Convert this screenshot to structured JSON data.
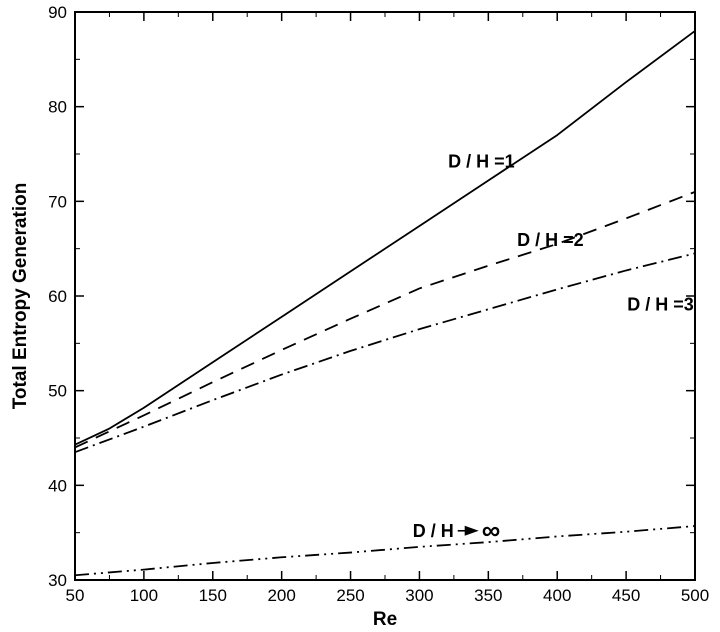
{
  "chart_data": {
    "type": "line",
    "title": "",
    "xlabel": "Re",
    "ylabel": "Total Entropy Generation",
    "xlim": [
      50,
      500
    ],
    "ylim": [
      30,
      90
    ],
    "xticks": [
      50,
      100,
      150,
      200,
      250,
      300,
      350,
      400,
      450,
      500
    ],
    "yticks": [
      30,
      40,
      50,
      60,
      70,
      80,
      90
    ],
    "grid": false,
    "legend": "none",
    "series": [
      {
        "name": "D / H =1",
        "style": "solid",
        "color": "#000000",
        "x": [
          50,
          75,
          100,
          150,
          200,
          250,
          300,
          350,
          400,
          450,
          500
        ],
        "y": [
          44.3,
          46.0,
          48.2,
          53.0,
          57.8,
          62.6,
          67.4,
          72.2,
          77.0,
          82.6,
          88.0
        ]
      },
      {
        "name": "D / H =2",
        "style": "dashed",
        "color": "#000000",
        "x": [
          50,
          100,
          150,
          200,
          250,
          300,
          350,
          400,
          450,
          500
        ],
        "y": [
          44.0,
          47.4,
          50.9,
          54.3,
          57.6,
          60.8,
          63.2,
          65.5,
          68.2,
          71.0
        ]
      },
      {
        "name": "D / H =3",
        "style": "dashdot",
        "color": "#000000",
        "x": [
          50,
          100,
          150,
          200,
          250,
          300,
          350,
          400,
          450,
          500
        ],
        "y": [
          43.5,
          46.2,
          49.0,
          51.7,
          54.2,
          56.5,
          58.6,
          60.7,
          62.7,
          64.5
        ]
      },
      {
        "name": "D / H",
        "style": "dashdotdot",
        "color": "#000000",
        "x": [
          50,
          100,
          150,
          200,
          250,
          300,
          350,
          400,
          450,
          500
        ],
        "y": [
          30.5,
          31.1,
          31.8,
          32.4,
          32.9,
          33.5,
          34.0,
          34.6,
          35.1,
          35.7
        ]
      }
    ],
    "annotations": [
      {
        "text": "D / H =1",
        "x": 345,
        "y": 74.2
      },
      {
        "text": "D / H =2",
        "x": 395,
        "y": 65.9
      },
      {
        "text": "D / H =3",
        "x": 475,
        "y": 59.1
      },
      {
        "text": "D / H",
        "x": 310,
        "y": 35.2,
        "arrow_to_x": 343,
        "symbol": "∞"
      }
    ]
  }
}
